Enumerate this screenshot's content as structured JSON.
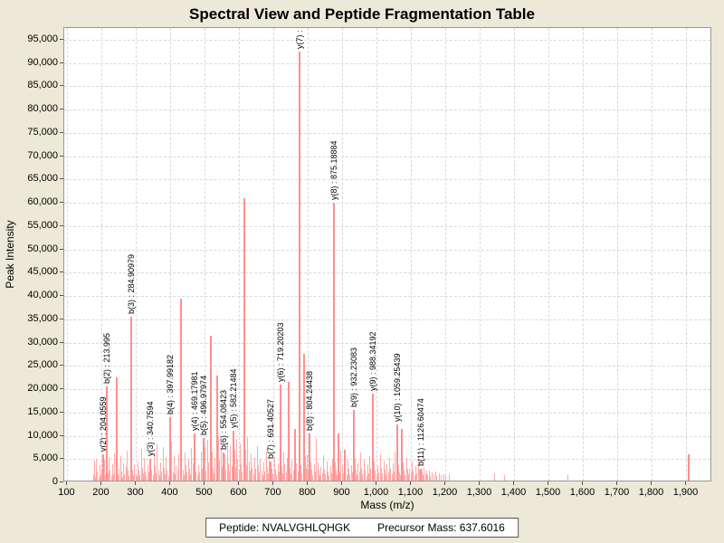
{
  "title": "Spectral View and Peptide Fragmentation Table",
  "footer": {
    "peptide": "Peptide: NVALVGHLQHGK",
    "precursor": "Precursor Mass: 637.6016"
  },
  "chart_data": {
    "type": "bar",
    "title": "Spectral View and Peptide Fragmentation Table",
    "xlabel": "Mass (m/z)",
    "ylabel": "Peak Intensity",
    "xlim": [
      91,
      1975
    ],
    "ylim": [
      0,
      97500
    ],
    "grid": "dashed",
    "legend": "none",
    "colors": {
      "background": "#ece9d8",
      "plot_background": "#ffffff",
      "grid": "#d9d9d9",
      "bar_main": "#ff8f8f",
      "bar_noise": "#ffa9a9",
      "border": "#979797",
      "text": "#000000"
    },
    "x_ticks": [
      {
        "v": 100,
        "label": "100"
      },
      {
        "v": 200,
        "label": "200"
      },
      {
        "v": 300,
        "label": "300"
      },
      {
        "v": 400,
        "label": "400"
      },
      {
        "v": 500,
        "label": "500"
      },
      {
        "v": 600,
        "label": "600"
      },
      {
        "v": 700,
        "label": "700"
      },
      {
        "v": 800,
        "label": "800"
      },
      {
        "v": 900,
        "label": "900"
      },
      {
        "v": 1000,
        "label": "1,000"
      },
      {
        "v": 1100,
        "label": "1,100"
      },
      {
        "v": 1200,
        "label": "1,200"
      },
      {
        "v": 1300,
        "label": "1,300"
      },
      {
        "v": 1400,
        "label": "1,400"
      },
      {
        "v": 1500,
        "label": "1,500"
      },
      {
        "v": 1600,
        "label": "1,600"
      },
      {
        "v": 1700,
        "label": "1,700"
      },
      {
        "v": 1800,
        "label": "1,800"
      },
      {
        "v": 1900,
        "label": "1,900"
      }
    ],
    "y_ticks": [
      {
        "v": 0,
        "label": "0"
      },
      {
        "v": 5000,
        "label": "5,000"
      },
      {
        "v": 10000,
        "label": "10,000"
      },
      {
        "v": 15000,
        "label": "15,000"
      },
      {
        "v": 20000,
        "label": "20,000"
      },
      {
        "v": 25000,
        "label": "25,000"
      },
      {
        "v": 30000,
        "label": "30,000"
      },
      {
        "v": 35000,
        "label": "35,000"
      },
      {
        "v": 40000,
        "label": "40,000"
      },
      {
        "v": 45000,
        "label": "45,000"
      },
      {
        "v": 50000,
        "label": "50,000"
      },
      {
        "v": 55000,
        "label": "55,000"
      },
      {
        "v": 60000,
        "label": "60,000"
      },
      {
        "v": 65000,
        "label": "65,000"
      },
      {
        "v": 70000,
        "label": "70,000"
      },
      {
        "v": 75000,
        "label": "75,000"
      },
      {
        "v": 80000,
        "label": "80,000"
      },
      {
        "v": 85000,
        "label": "85,000"
      },
      {
        "v": 90000,
        "label": "90,000"
      },
      {
        "v": 95000,
        "label": "95,000"
      }
    ],
    "labeled_peaks": [
      {
        "ion": "y(2)",
        "mz": 204.0559,
        "intensity": 6000,
        "label": "y(2) : 204.0559"
      },
      {
        "ion": "b(2)",
        "mz": 213.995,
        "intensity": 20500,
        "label": "b(2) : 213.995"
      },
      {
        "ion": "b(3)",
        "mz": 284.90979,
        "intensity": 35500,
        "label": "b(3) : 284.90979"
      },
      {
        "ion": "y(3)",
        "mz": 340.7594,
        "intensity": 5000,
        "label": "y(3) : 340.7594"
      },
      {
        "ion": "b(4)",
        "mz": 397.99182,
        "intensity": 14000,
        "label": "b(4) : 397.99182"
      },
      {
        "ion": "y(4)",
        "mz": 469.17981,
        "intensity": 10500,
        "label": "y(4) : 469.17981"
      },
      {
        "ion": "b(5)",
        "mz": 496.97974,
        "intensity": 9500,
        "label": "b(5) : 496.97974"
      },
      {
        "ion": "b(6)",
        "mz": 554.08423,
        "intensity": 6500,
        "label": "b(6) : 554.08423"
      },
      {
        "ion": "y(5)",
        "mz": 582.21484,
        "intensity": 11000,
        "label": "y(5) : 582.21484"
      },
      {
        "ion": "b(7)",
        "mz": 691.40527,
        "intensity": 4500,
        "label": "b(7) : 691.40527"
      },
      {
        "ion": "y(6)",
        "mz": 719.20203,
        "intensity": 21000,
        "label": "y(6) : 719.20203"
      },
      {
        "ion": "y(7)",
        "mz": 775.3,
        "intensity": 92500,
        "label": "y(7) :"
      },
      {
        "ion": "b(8)",
        "mz": 804.24438,
        "intensity": 10500,
        "label": "b(8) : 804.24438"
      },
      {
        "ion": "y(8)",
        "mz": 875.18884,
        "intensity": 60000,
        "label": "y(8) : 875.18884"
      },
      {
        "ion": "b(9)",
        "mz": 932.23083,
        "intensity": 15500,
        "label": "b(9) : 932.23083"
      },
      {
        "ion": "y(9)",
        "mz": 988.34192,
        "intensity": 19000,
        "label": "y(9) : 988.34192"
      },
      {
        "ion": "y(10)",
        "mz": 1059.25439,
        "intensity": 12500,
        "label": "y(10) : 1059.25439"
      },
      {
        "ion": "b(11)",
        "mz": 1126.60474,
        "intensity": 3000,
        "label": "b(11) : 1126.60474"
      }
    ],
    "unlabeled_major_peaks": [
      [
        243.7,
        22500
      ],
      [
        430.5,
        39500
      ],
      [
        517,
        31500
      ],
      [
        536,
        23000
      ],
      [
        615,
        61000
      ],
      [
        743.6,
        21500
      ],
      [
        763,
        11500
      ],
      [
        788.4,
        27500
      ],
      [
        887,
        10400
      ],
      [
        906,
        7000
      ],
      [
        1072,
        11500
      ],
      [
        1907,
        6000
      ]
    ],
    "noise_peaks": [
      [
        176,
        1800
      ],
      [
        179,
        4600
      ],
      [
        182,
        1200
      ],
      [
        185,
        5100
      ],
      [
        188,
        2400
      ],
      [
        191,
        900
      ],
      [
        194,
        3600
      ],
      [
        197,
        1500
      ],
      [
        199,
        2800
      ],
      [
        202,
        1100
      ],
      [
        206,
        2300
      ],
      [
        209,
        4800
      ],
      [
        212,
        1600
      ],
      [
        216,
        3100
      ],
      [
        219,
        1900
      ],
      [
        222,
        5400
      ],
      [
        225,
        2600
      ],
      [
        228,
        1300
      ],
      [
        231,
        3900
      ],
      [
        234,
        1700
      ],
      [
        237,
        6200
      ],
      [
        241,
        2100
      ],
      [
        245,
        3400
      ],
      [
        248,
        1500
      ],
      [
        251,
        2900
      ],
      [
        255,
        5700
      ],
      [
        258,
        2300
      ],
      [
        261,
        1200
      ],
      [
        264,
        4100
      ],
      [
        267,
        1800
      ],
      [
        271,
        3300
      ],
      [
        274,
        6800
      ],
      [
        277,
        2500
      ],
      [
        280,
        1400
      ],
      [
        287,
        5900
      ],
      [
        290,
        2700
      ],
      [
        293,
        1600
      ],
      [
        296,
        3800
      ],
      [
        299,
        2000
      ],
      [
        302,
        1300
      ],
      [
        306,
        4400
      ],
      [
        309,
        2600
      ],
      [
        312,
        1500
      ],
      [
        315,
        7100
      ],
      [
        318,
        3200
      ],
      [
        321,
        1900
      ],
      [
        324,
        5300
      ],
      [
        327,
        2400
      ],
      [
        330,
        1400
      ],
      [
        334,
        3700
      ],
      [
        337,
        2100
      ],
      [
        343,
        4900
      ],
      [
        346,
        2800
      ],
      [
        349,
        1600
      ],
      [
        352,
        6300
      ],
      [
        355,
        3500
      ],
      [
        358,
        2000
      ],
      [
        362,
        8200
      ],
      [
        365,
        2700
      ],
      [
        368,
        1500
      ],
      [
        371,
        4200
      ],
      [
        374,
        2300
      ],
      [
        378,
        7600
      ],
      [
        381,
        3100
      ],
      [
        384,
        1800
      ],
      [
        387,
        5500
      ],
      [
        390,
        2600
      ],
      [
        394,
        1400
      ],
      [
        401,
        3900
      ],
      [
        404,
        8800
      ],
      [
        407,
        2200
      ],
      [
        411,
        5600
      ],
      [
        414,
        1700
      ],
      [
        417,
        3400
      ],
      [
        420,
        2500
      ],
      [
        424,
        6100
      ],
      [
        428,
        1900
      ],
      [
        433,
        4700
      ],
      [
        436,
        2800
      ],
      [
        439,
        1500
      ],
      [
        442,
        6400
      ],
      [
        445,
        3600
      ],
      [
        448,
        2100
      ],
      [
        452,
        5000
      ],
      [
        455,
        2900
      ],
      [
        458,
        1700
      ],
      [
        462,
        7300
      ],
      [
        465,
        4000
      ],
      [
        472,
        5800
      ],
      [
        475,
        2400
      ],
      [
        478,
        1600
      ],
      [
        482,
        3700
      ],
      [
        485,
        2200
      ],
      [
        489,
        6600
      ],
      [
        492,
        3000
      ],
      [
        501,
        7900
      ],
      [
        504,
        2600
      ],
      [
        508,
        9200
      ],
      [
        511,
        4300
      ],
      [
        521,
        6700
      ],
      [
        524,
        3100
      ],
      [
        527,
        1900
      ],
      [
        530,
        5200
      ],
      [
        540,
        9800
      ],
      [
        543,
        4600
      ],
      [
        547,
        7400
      ],
      [
        550,
        3300
      ],
      [
        558,
        6000
      ],
      [
        561,
        2800
      ],
      [
        565,
        8500
      ],
      [
        568,
        4100
      ],
      [
        571,
        2300
      ],
      [
        575,
        7700
      ],
      [
        578,
        3500
      ],
      [
        586,
        6900
      ],
      [
        589,
        3200
      ],
      [
        592,
        9400
      ],
      [
        596,
        4800
      ],
      [
        599,
        2700
      ],
      [
        603,
        8100
      ],
      [
        606,
        3900
      ],
      [
        609,
        2200
      ],
      [
        619,
        7200
      ],
      [
        622,
        3600
      ],
      [
        625,
        9700
      ],
      [
        628,
        4400
      ],
      [
        632,
        2500
      ],
      [
        635,
        6200
      ],
      [
        638,
        3100
      ],
      [
        641,
        1800
      ],
      [
        645,
        5400
      ],
      [
        648,
        2900
      ],
      [
        652,
        7800
      ],
      [
        655,
        3700
      ],
      [
        658,
        2100
      ],
      [
        661,
        5100
      ],
      [
        665,
        2600
      ],
      [
        668,
        1500
      ],
      [
        672,
        4300
      ],
      [
        675,
        2400
      ],
      [
        678,
        6700
      ],
      [
        682,
        3300
      ],
      [
        685,
        1900
      ],
      [
        688,
        4600
      ],
      [
        695,
        3000
      ],
      [
        698,
        1700
      ],
      [
        702,
        5500
      ],
      [
        705,
        2800
      ],
      [
        708,
        1600
      ],
      [
        712,
        4000
      ],
      [
        715,
        2300
      ],
      [
        723,
        3400
      ],
      [
        726,
        1900
      ],
      [
        730,
        6500
      ],
      [
        733,
        3800
      ],
      [
        736,
        2200
      ],
      [
        740,
        5300
      ],
      [
        747,
        3100
      ],
      [
        750,
        1800
      ],
      [
        754,
        4700
      ],
      [
        757,
        2600
      ],
      [
        760,
        9000
      ],
      [
        767,
        4100
      ],
      [
        770,
        2400
      ],
      [
        773,
        1500
      ],
      [
        780,
        3600
      ],
      [
        783,
        2000
      ],
      [
        791,
        5600
      ],
      [
        794,
        3200
      ],
      [
        797,
        6000
      ],
      [
        800,
        2500
      ],
      [
        808,
        4400
      ],
      [
        811,
        2700
      ],
      [
        814,
        1600
      ],
      [
        818,
        3900
      ],
      [
        821,
        2300
      ],
      [
        824,
        9500
      ],
      [
        828,
        4200
      ],
      [
        831,
        2600
      ],
      [
        834,
        1500
      ],
      [
        838,
        3300
      ],
      [
        841,
        1900
      ],
      [
        845,
        5800
      ],
      [
        848,
        2800
      ],
      [
        851,
        1700
      ],
      [
        855,
        4500
      ],
      [
        858,
        2400
      ],
      [
        861,
        1400
      ],
      [
        865,
        3500
      ],
      [
        868,
        2000
      ],
      [
        871,
        5000
      ],
      [
        879,
        4300
      ],
      [
        882,
        2500
      ],
      [
        885,
        1600
      ],
      [
        889,
        3700
      ],
      [
        892,
        2100
      ],
      [
        896,
        6800
      ],
      [
        899,
        3400
      ],
      [
        902,
        1900
      ],
      [
        909,
        2700
      ],
      [
        912,
        1500
      ],
      [
        916,
        4800
      ],
      [
        919,
        2900
      ],
      [
        922,
        1800
      ],
      [
        926,
        3600
      ],
      [
        929,
        2200
      ],
      [
        936,
        5100
      ],
      [
        939,
        2800
      ],
      [
        942,
        1600
      ],
      [
        946,
        4000
      ],
      [
        949,
        2300
      ],
      [
        953,
        6400
      ],
      [
        956,
        3100
      ],
      [
        959,
        1800
      ],
      [
        963,
        4900
      ],
      [
        966,
        2600
      ],
      [
        970,
        1400
      ],
      [
        973,
        3800
      ],
      [
        976,
        2000
      ],
      [
        980,
        5700
      ],
      [
        983,
        3000
      ],
      [
        986,
        1700
      ],
      [
        992,
        4400
      ],
      [
        995,
        2500
      ],
      [
        999,
        1500
      ],
      [
        1003,
        3500
      ],
      [
        1006,
        2100
      ],
      [
        1010,
        6000
      ],
      [
        1013,
        3200
      ],
      [
        1016,
        1900
      ],
      [
        1020,
        4600
      ],
      [
        1023,
        2700
      ],
      [
        1027,
        1600
      ],
      [
        1030,
        3900
      ],
      [
        1033,
        2200
      ],
      [
        1037,
        5300
      ],
      [
        1040,
        2900
      ],
      [
        1044,
        1700
      ],
      [
        1047,
        4100
      ],
      [
        1050,
        2400
      ],
      [
        1054,
        6600
      ],
      [
        1063,
        3700
      ],
      [
        1066,
        2100
      ],
      [
        1069,
        1500
      ],
      [
        1076,
        4200
      ],
      [
        1079,
        2500
      ],
      [
        1082,
        1600
      ],
      [
        1086,
        5200
      ],
      [
        1089,
        3000
      ],
      [
        1093,
        1800
      ],
      [
        1096,
        3000
      ],
      [
        1099,
        2200
      ],
      [
        1103,
        4500
      ],
      [
        1106,
        2600
      ],
      [
        1110,
        1500
      ],
      [
        1113,
        3400
      ],
      [
        1116,
        2000
      ],
      [
        1120,
        5000
      ],
      [
        1123,
        2800
      ],
      [
        1131,
        2300
      ],
      [
        1134,
        1600
      ],
      [
        1138,
        3100
      ],
      [
        1141,
        1900
      ],
      [
        1145,
        2600
      ],
      [
        1148,
        1500
      ],
      [
        1152,
        2600
      ],
      [
        1156,
        1400
      ],
      [
        1160,
        2100
      ],
      [
        1165,
        1700
      ],
      [
        1170,
        2300
      ],
      [
        1175,
        1400
      ],
      [
        1181,
        1900
      ],
      [
        1187,
        1500
      ],
      [
        1194,
        1800
      ],
      [
        1200,
        1300
      ],
      [
        1210,
        1800
      ],
      [
        1342,
        1900
      ],
      [
        1371,
        1500
      ],
      [
        1554,
        1700
      ]
    ]
  }
}
